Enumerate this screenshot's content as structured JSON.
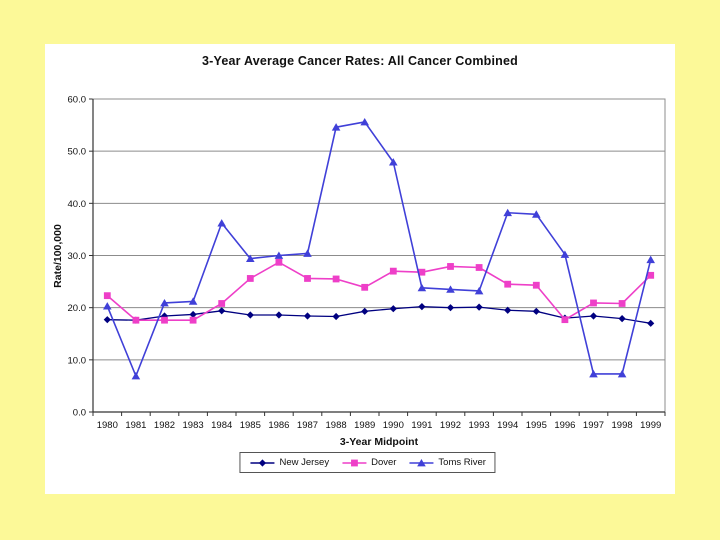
{
  "page": {
    "background_color": "#fcf998",
    "panel_color": "#ffffff"
  },
  "chart_data": {
    "type": "line",
    "title": "3-Year Average Cancer Rates: All Cancer Combined",
    "xlabel": "3-Year Midpoint",
    "ylabel": "Rate/100,000",
    "x": [
      1980,
      1981,
      1982,
      1983,
      1984,
      1985,
      1986,
      1987,
      1988,
      1989,
      1990,
      1991,
      1992,
      1993,
      1994,
      1995,
      1996,
      1997,
      1998,
      1999
    ],
    "ylim": [
      0,
      60
    ],
    "ytick_step": 10,
    "ytick_decimals": 1,
    "grid": true,
    "legend_position": "bottom",
    "gridline_color": "#8c8c8c",
    "axis_color": "#333333",
    "series": [
      {
        "name": "New Jersey",
        "color": "#000080",
        "marker": "diamond",
        "values": [
          17.7,
          17.6,
          18.4,
          18.7,
          19.4,
          18.6,
          18.6,
          18.4,
          18.3,
          19.3,
          19.8,
          20.2,
          20.0,
          20.1,
          19.5,
          19.3,
          18.0,
          18.4,
          17.9,
          17.0
        ]
      },
      {
        "name": "Dover",
        "color": "#ee3fc8",
        "marker": "square",
        "values": [
          22.3,
          17.6,
          17.6,
          17.6,
          20.8,
          25.6,
          28.7,
          25.6,
          25.5,
          23.9,
          27.0,
          26.8,
          27.9,
          27.7,
          24.5,
          24.3,
          17.7,
          20.9,
          20.8,
          26.2
        ]
      },
      {
        "name": "Toms River",
        "color": "#4040d8",
        "marker": "triangle",
        "values": [
          20.3,
          6.9,
          20.9,
          21.2,
          36.2,
          29.4,
          30.0,
          30.4,
          54.6,
          55.6,
          47.9,
          23.8,
          23.5,
          23.2,
          38.2,
          37.9,
          30.2,
          7.3,
          7.3,
          29.2
        ]
      }
    ]
  }
}
